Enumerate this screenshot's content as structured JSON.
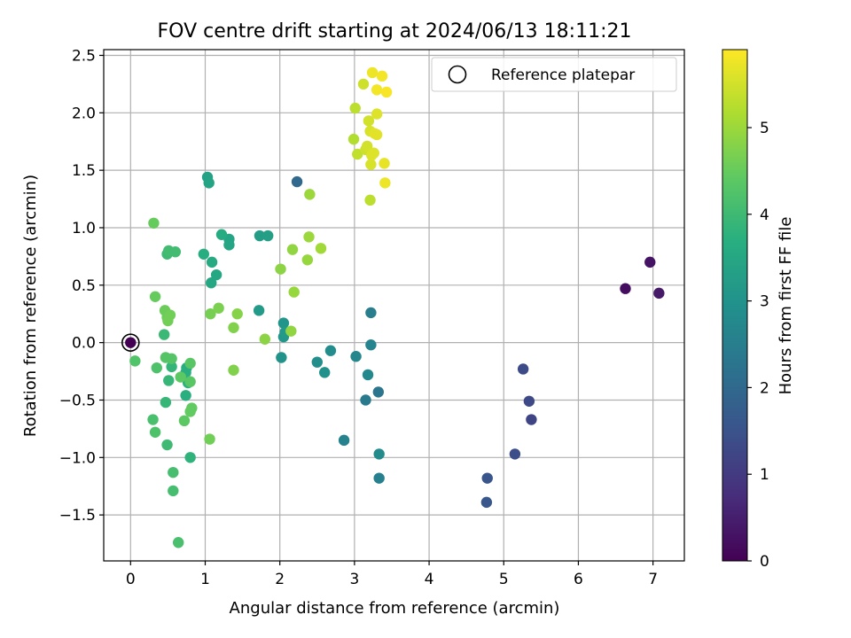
{
  "chart_data": {
    "type": "scatter",
    "title": "FOV centre drift starting at 2024/06/13 18:11:21",
    "xlabel": "Angular distance from reference (arcmin)",
    "ylabel": "Rotation from reference (arcmin)",
    "xlim": [
      -0.36,
      7.42
    ],
    "ylim": [
      -1.9,
      2.55
    ],
    "xticks": [
      0,
      1,
      2,
      3,
      4,
      5,
      6,
      7
    ],
    "yticks": [
      -1.5,
      -1.0,
      -0.5,
      0.0,
      0.5,
      1.0,
      1.5,
      2.0,
      2.5
    ],
    "xtick_labels": [
      "0",
      "1",
      "2",
      "3",
      "4",
      "5",
      "6",
      "7"
    ],
    "ytick_labels": [
      "−1.5",
      "−1.0",
      "−0.5",
      "0.0",
      "0.5",
      "1.0",
      "1.5",
      "2.0",
      "2.5"
    ],
    "grid": true,
    "legend": {
      "position": "top-right",
      "entries": [
        "Reference platepar"
      ]
    },
    "reference_point": {
      "x": 0,
      "y": 0,
      "marker": "open-circle"
    },
    "colorbar": {
      "label": "Hours from first FF file",
      "range": [
        0,
        5.9
      ],
      "ticks": [
        0,
        1,
        2,
        3,
        4,
        5
      ],
      "tick_labels": [
        "0",
        "1",
        "2",
        "3",
        "4",
        "5"
      ],
      "colormap": "viridis"
    },
    "points": [
      {
        "x": 0.0,
        "y": 0.0,
        "hours": 0.0
      },
      {
        "x": 6.63,
        "y": 0.47,
        "hours": 0.2
      },
      {
        "x": 6.96,
        "y": 0.7,
        "hours": 0.3
      },
      {
        "x": 7.08,
        "y": 0.43,
        "hours": 0.4
      },
      {
        "x": 5.37,
        "y": -0.67,
        "hours": 1.2
      },
      {
        "x": 5.34,
        "y": -0.51,
        "hours": 1.3
      },
      {
        "x": 5.26,
        "y": -0.23,
        "hours": 1.35
      },
      {
        "x": 5.15,
        "y": -0.97,
        "hours": 1.4
      },
      {
        "x": 4.78,
        "y": -1.18,
        "hours": 1.55
      },
      {
        "x": 4.77,
        "y": -1.39,
        "hours": 1.6
      },
      {
        "x": 2.23,
        "y": 1.4,
        "hours": 2.0
      },
      {
        "x": 3.32,
        "y": -0.43,
        "hours": 2.3
      },
      {
        "x": 3.15,
        "y": -0.5,
        "hours": 2.4
      },
      {
        "x": 3.22,
        "y": 0.26,
        "hours": 2.5
      },
      {
        "x": 3.33,
        "y": -1.18,
        "hours": 2.55
      },
      {
        "x": 2.86,
        "y": -0.85,
        "hours": 2.6
      },
      {
        "x": 3.22,
        "y": -0.02,
        "hours": 2.65
      },
      {
        "x": 3.02,
        "y": -0.12,
        "hours": 2.7
      },
      {
        "x": 3.18,
        "y": -0.28,
        "hours": 2.75
      },
      {
        "x": 3.33,
        "y": -0.97,
        "hours": 2.8
      },
      {
        "x": 2.68,
        "y": -0.07,
        "hours": 2.85
      },
      {
        "x": 2.5,
        "y": -0.17,
        "hours": 2.9
      },
      {
        "x": 2.6,
        "y": -0.26,
        "hours": 2.95
      },
      {
        "x": 2.02,
        "y": -0.13,
        "hours": 3.0
      },
      {
        "x": 2.05,
        "y": 0.17,
        "hours": 3.05
      },
      {
        "x": 2.05,
        "y": 0.05,
        "hours": 3.1
      },
      {
        "x": 2.07,
        "y": 0.09,
        "hours": 3.15
      },
      {
        "x": 1.72,
        "y": 0.28,
        "hours": 3.2
      },
      {
        "x": 1.73,
        "y": 0.93,
        "hours": 3.25
      },
      {
        "x": 1.84,
        "y": 0.93,
        "hours": 3.3
      },
      {
        "x": 1.03,
        "y": 1.44,
        "hours": 3.35
      },
      {
        "x": 1.05,
        "y": 1.39,
        "hours": 3.4
      },
      {
        "x": 1.32,
        "y": 0.9,
        "hours": 3.45
      },
      {
        "x": 1.32,
        "y": 0.85,
        "hours": 3.45
      },
      {
        "x": 1.15,
        "y": 0.59,
        "hours": 3.5
      },
      {
        "x": 1.08,
        "y": 0.52,
        "hours": 3.5
      },
      {
        "x": 1.09,
        "y": 0.7,
        "hours": 3.55
      },
      {
        "x": 1.22,
        "y": 0.94,
        "hours": 3.6
      },
      {
        "x": 0.98,
        "y": 0.77,
        "hours": 3.65
      },
      {
        "x": 0.75,
        "y": -0.22,
        "hours": 3.65
      },
      {
        "x": 0.74,
        "y": -0.26,
        "hours": 3.7
      },
      {
        "x": 0.74,
        "y": -0.46,
        "hours": 3.7
      },
      {
        "x": 0.77,
        "y": -0.35,
        "hours": 3.75
      },
      {
        "x": 0.8,
        "y": -1.0,
        "hours": 3.8
      },
      {
        "x": 0.55,
        "y": -0.21,
        "hours": 3.85
      },
      {
        "x": 0.51,
        "y": -0.33,
        "hours": 3.9
      },
      {
        "x": 0.47,
        "y": -0.52,
        "hours": 3.9
      },
      {
        "x": 0.45,
        "y": 0.07,
        "hours": 3.95
      },
      {
        "x": 0.49,
        "y": -0.89,
        "hours": 4.0
      },
      {
        "x": 0.49,
        "y": 0.77,
        "hours": 4.0
      },
      {
        "x": 0.51,
        "y": 0.8,
        "hours": 4.05
      },
      {
        "x": 0.6,
        "y": 0.79,
        "hours": 4.05
      },
      {
        "x": 0.57,
        "y": -1.29,
        "hours": 4.1
      },
      {
        "x": 0.57,
        "y": -1.13,
        "hours": 4.1
      },
      {
        "x": 0.64,
        "y": -1.74,
        "hours": 4.15
      },
      {
        "x": 0.3,
        "y": -0.67,
        "hours": 4.15
      },
      {
        "x": 0.33,
        "y": -0.78,
        "hours": 4.2
      },
      {
        "x": 0.35,
        "y": -0.22,
        "hours": 4.2
      },
      {
        "x": 0.06,
        "y": -0.16,
        "hours": 4.25
      },
      {
        "x": 0.47,
        "y": -0.13,
        "hours": 4.3
      },
      {
        "x": 0.55,
        "y": -0.14,
        "hours": 4.3
      },
      {
        "x": 0.8,
        "y": -0.18,
        "hours": 4.35
      },
      {
        "x": 0.8,
        "y": -0.34,
        "hours": 4.35
      },
      {
        "x": 0.67,
        "y": -0.3,
        "hours": 4.4
      },
      {
        "x": 0.72,
        "y": -0.68,
        "hours": 4.4
      },
      {
        "x": 0.82,
        "y": -0.57,
        "hours": 4.45
      },
      {
        "x": 0.8,
        "y": -0.6,
        "hours": 4.45
      },
      {
        "x": 0.31,
        "y": 1.04,
        "hours": 4.5
      },
      {
        "x": 0.33,
        "y": 0.4,
        "hours": 4.5
      },
      {
        "x": 0.46,
        "y": 0.28,
        "hours": 4.55
      },
      {
        "x": 0.49,
        "y": 0.22,
        "hours": 4.55
      },
      {
        "x": 0.5,
        "y": 0.19,
        "hours": 4.6
      },
      {
        "x": 0.53,
        "y": 0.24,
        "hours": 4.6
      },
      {
        "x": 1.06,
        "y": -0.84,
        "hours": 4.6
      },
      {
        "x": 1.07,
        "y": 0.25,
        "hours": 4.65
      },
      {
        "x": 1.18,
        "y": 0.3,
        "hours": 4.7
      },
      {
        "x": 1.38,
        "y": -0.24,
        "hours": 4.75
      },
      {
        "x": 1.38,
        "y": 0.13,
        "hours": 4.75
      },
      {
        "x": 1.43,
        "y": 0.25,
        "hours": 4.8
      },
      {
        "x": 1.8,
        "y": 0.03,
        "hours": 4.85
      },
      {
        "x": 2.01,
        "y": 0.64,
        "hours": 4.85
      },
      {
        "x": 2.15,
        "y": 0.1,
        "hours": 4.9
      },
      {
        "x": 2.17,
        "y": 0.81,
        "hours": 4.9
      },
      {
        "x": 2.19,
        "y": 0.44,
        "hours": 4.95
      },
      {
        "x": 2.37,
        "y": 0.72,
        "hours": 4.95
      },
      {
        "x": 2.39,
        "y": 0.92,
        "hours": 5.0
      },
      {
        "x": 2.4,
        "y": 1.29,
        "hours": 5.0
      },
      {
        "x": 2.55,
        "y": 0.82,
        "hours": 5.05
      },
      {
        "x": 2.99,
        "y": 1.77,
        "hours": 5.2
      },
      {
        "x": 3.01,
        "y": 2.04,
        "hours": 5.3
      },
      {
        "x": 3.04,
        "y": 1.64,
        "hours": 5.35
      },
      {
        "x": 3.12,
        "y": 2.25,
        "hours": 5.45
      },
      {
        "x": 3.15,
        "y": 1.68,
        "hours": 5.45
      },
      {
        "x": 3.17,
        "y": 1.71,
        "hours": 5.5
      },
      {
        "x": 3.19,
        "y": 1.93,
        "hours": 5.5
      },
      {
        "x": 3.21,
        "y": 1.24,
        "hours": 5.3
      },
      {
        "x": 3.21,
        "y": 1.84,
        "hours": 5.55
      },
      {
        "x": 3.22,
        "y": 1.55,
        "hours": 5.55
      },
      {
        "x": 3.23,
        "y": 1.63,
        "hours": 5.6
      },
      {
        "x": 3.24,
        "y": 2.35,
        "hours": 5.75
      },
      {
        "x": 3.26,
        "y": 1.65,
        "hours": 5.6
      },
      {
        "x": 3.27,
        "y": 1.82,
        "hours": 5.65
      },
      {
        "x": 3.3,
        "y": 1.81,
        "hours": 5.65
      },
      {
        "x": 3.3,
        "y": 1.99,
        "hours": 5.6
      },
      {
        "x": 3.3,
        "y": 2.2,
        "hours": 5.8
      },
      {
        "x": 3.37,
        "y": 2.32,
        "hours": 5.8
      },
      {
        "x": 3.4,
        "y": 1.56,
        "hours": 5.7
      },
      {
        "x": 3.41,
        "y": 1.39,
        "hours": 5.75
      },
      {
        "x": 3.43,
        "y": 2.18,
        "hours": 5.85
      }
    ]
  }
}
